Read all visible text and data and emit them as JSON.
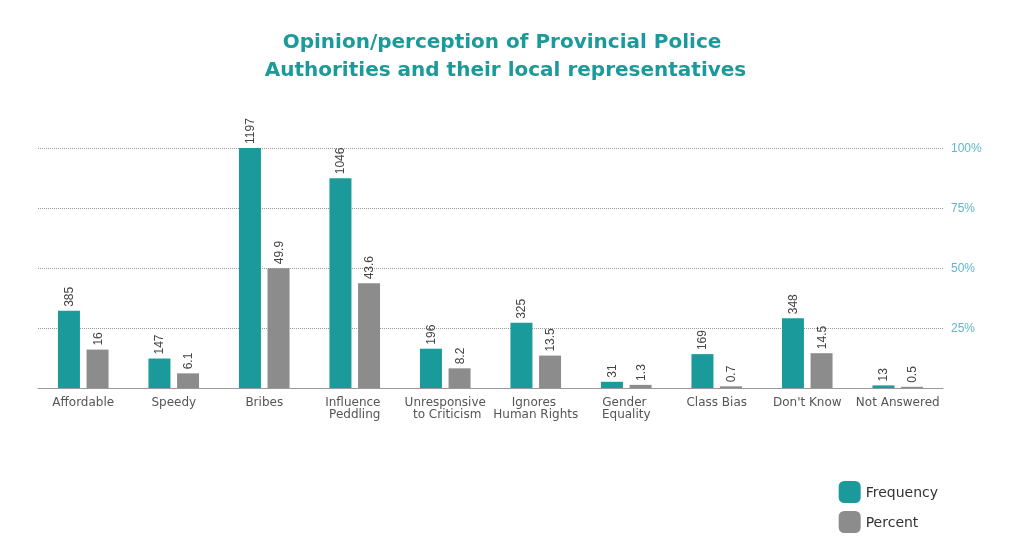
{
  "chart_data": {
    "type": "bar",
    "title": "Opinion/perception of Provincial Police Authorities and their local representatives",
    "categories": [
      "Affordable",
      "Speedy",
      "Bribes",
      "Influence Peddling",
      "Unresponsive to Criticism",
      "Ignores Human Rights",
      "Gender Equality",
      "Class Bias",
      "Don't Know",
      "Not Answered"
    ],
    "series": [
      {
        "name": "Frequency",
        "color": "#1b9a9c",
        "values": [
          385,
          147,
          1197,
          1046,
          196,
          325,
          31,
          169,
          348,
          13
        ]
      },
      {
        "name": "Percent",
        "color": "#8c8c8c",
        "axis": "y2",
        "values": [
          16,
          6.1,
          49.9,
          43.6,
          8.2,
          13.5,
          1.3,
          0.7,
          14.5,
          0.5
        ]
      }
    ],
    "ylim": [
      0,
      1197
    ],
    "y2lim": [
      0,
      100
    ],
    "y2ticks": [
      {
        "value": 25,
        "label": "25%"
      },
      {
        "value": 50,
        "label": "50%"
      },
      {
        "value": 75,
        "label": "75%"
      },
      {
        "value": 100,
        "label": "100%"
      }
    ],
    "tick_labels": "x y2",
    "data_labels": true,
    "grid": true,
    "legend": "bottom right"
  }
}
